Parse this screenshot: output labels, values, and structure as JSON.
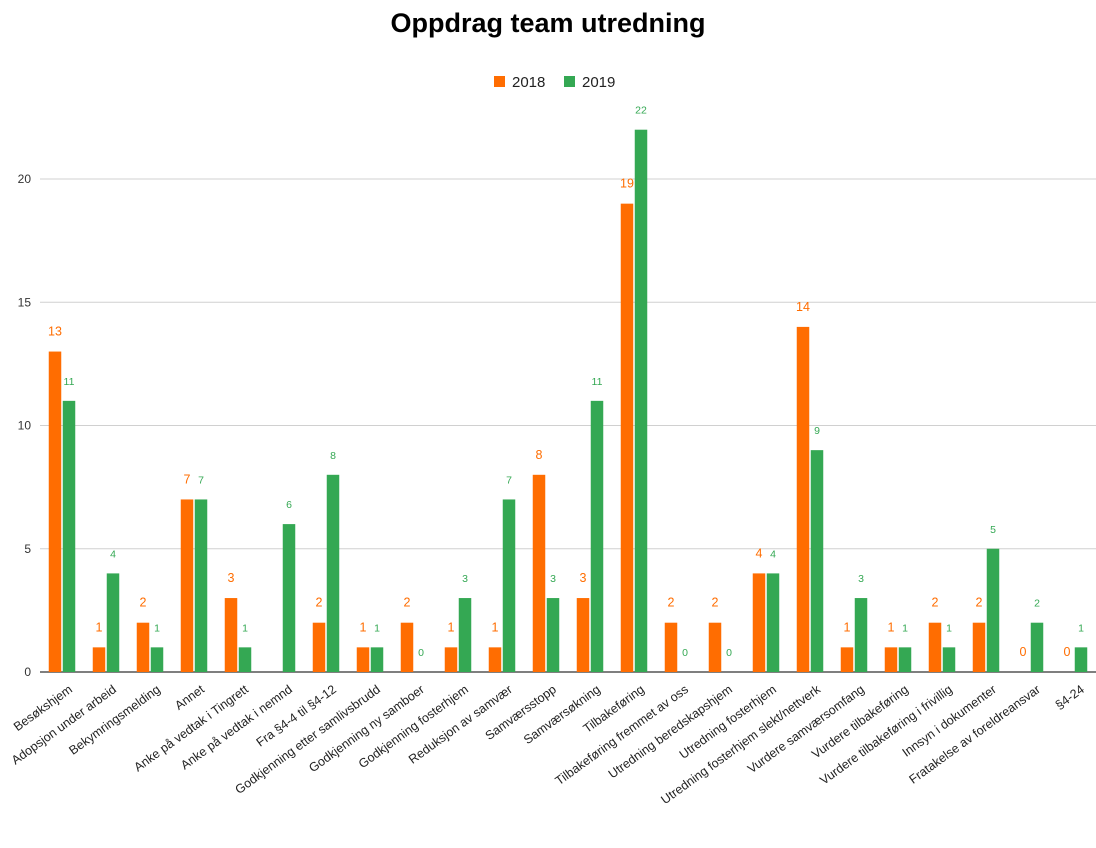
{
  "chart_data": {
    "type": "bar",
    "title": "Oppdrag team utredning",
    "xlabel": "",
    "ylabel": "",
    "ylim": [
      0,
      23
    ],
    "yticks": [
      0,
      5,
      10,
      15,
      20
    ],
    "grid": true,
    "legend_position": "top",
    "categories": [
      "Besøkshjem",
      "Adopsjon under arbeid",
      "Bekymringsmelding",
      "Annet",
      "Anke på vedtak i Tingrett",
      "Anke på vedtak i nemnd",
      "Fra §4-4 til §4-12",
      "Godkjenning etter samlivsbrudd",
      "Godkjenning ny samboer",
      "Godkjenning fosterhjem",
      "Reduksjon av samvær",
      "Samværsstopp",
      "Samværsøkning",
      "Tilbakeføring",
      "Tilbakeføring fremmet av oss",
      "Utredning beredskapshjem",
      "Utredning fosterhjem",
      "Utredning fosterhjem slekt/nettverk",
      "Vurdere samværsomfang",
      "Vurdere tilbakeføring",
      "Vurdere tilbakeføring i frivillig",
      "Innsyn i dokumenter",
      "Fratakelse av foreldreansvar",
      "§4-24"
    ],
    "series": [
      {
        "name": "2018",
        "color": "#ff6d01",
        "values": [
          13,
          1,
          2,
          7,
          3,
          null,
          2,
          1,
          2,
          1,
          1,
          8,
          3,
          19,
          2,
          2,
          4,
          14,
          1,
          1,
          2,
          2,
          0,
          0
        ]
      },
      {
        "name": "2019",
        "color": "#34a853",
        "values": [
          11,
          4,
          1,
          7,
          1,
          6,
          8,
          1,
          0,
          3,
          7,
          3,
          11,
          22,
          0,
          0,
          4,
          9,
          3,
          1,
          1,
          5,
          2,
          1
        ]
      }
    ]
  }
}
